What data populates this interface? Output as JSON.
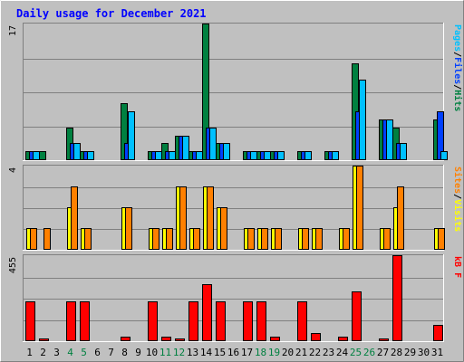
{
  "title": "Daily usage for December 2021",
  "colors": {
    "background": "#C0C0C0",
    "title": "#0000FF",
    "hits": "#008040",
    "files": "#0040FF",
    "pages": "#00C0FF",
    "visits": "#FFFF00",
    "sites": "#FF8000",
    "kbytes": "#FF0000",
    "weekend_label": "#008040"
  },
  "chart_data": [
    {
      "type": "bar",
      "name": "hits-files-pages",
      "ymax_label": "17",
      "ymax": 17,
      "legend": [
        "Pages",
        "/",
        "Files",
        "/",
        "Hits"
      ],
      "series": [
        {
          "name": "Hits",
          "values": [
            1,
            1,
            0,
            4,
            1,
            0,
            0,
            7,
            0,
            1,
            2,
            3,
            1,
            17,
            2,
            0,
            1,
            1,
            1,
            0,
            1,
            0,
            1,
            0,
            12,
            0,
            5,
            4,
            0,
            0,
            5
          ]
        },
        {
          "name": "Files",
          "values": [
            1,
            0,
            0,
            2,
            1,
            0,
            0,
            2,
            0,
            1,
            1,
            3,
            1,
            4,
            2,
            0,
            1,
            1,
            1,
            0,
            1,
            0,
            1,
            0,
            6,
            0,
            5,
            2,
            0,
            0,
            6
          ]
        },
        {
          "name": "Pages",
          "values": [
            1,
            0,
            0,
            2,
            1,
            0,
            0,
            6,
            0,
            1,
            1,
            3,
            1,
            4,
            2,
            0,
            1,
            1,
            1,
            0,
            1,
            0,
            1,
            0,
            10,
            0,
            5,
            2,
            0,
            0,
            1
          ]
        }
      ]
    },
    {
      "type": "bar",
      "name": "visits-sites",
      "ymax_label": "4",
      "ymax": 4,
      "legend": [
        "Sites",
        "/",
        "Visits"
      ],
      "series": [
        {
          "name": "Visits",
          "values": [
            1,
            0,
            0,
            2,
            1,
            0,
            0,
            2,
            0,
            1,
            1,
            3,
            1,
            3,
            2,
            0,
            1,
            1,
            1,
            0,
            1,
            1,
            0,
            1,
            4,
            0,
            1,
            2,
            0,
            0,
            1
          ]
        },
        {
          "name": "Sites",
          "values": [
            1,
            1,
            0,
            3,
            1,
            0,
            0,
            2,
            0,
            1,
            1,
            3,
            1,
            3,
            2,
            0,
            1,
            1,
            1,
            0,
            1,
            1,
            0,
            1,
            4,
            0,
            1,
            3,
            0,
            0,
            1
          ]
        }
      ]
    },
    {
      "type": "bar",
      "name": "kbytes",
      "ymax_label": "455",
      "ymax": 455,
      "legend": [
        "kB",
        "F"
      ],
      "series": [
        {
          "name": "kB F",
          "values": [
            210,
            12,
            0,
            210,
            210,
            0,
            0,
            20,
            0,
            210,
            20,
            12,
            210,
            300,
            210,
            0,
            210,
            210,
            20,
            0,
            210,
            40,
            0,
            20,
            260,
            0,
            12,
            455,
            0,
            0,
            80
          ]
        }
      ]
    }
  ],
  "days": [
    "1",
    "2",
    "3",
    "4",
    "5",
    "6",
    "7",
    "8",
    "9",
    "10",
    "11",
    "12",
    "13",
    "14",
    "15",
    "16",
    "17",
    "18",
    "19",
    "20",
    "21",
    "22",
    "23",
    "24",
    "25",
    "26",
    "27",
    "28",
    "29",
    "30",
    "31"
  ],
  "weekend_days": [
    "4",
    "5",
    "11",
    "12",
    "18",
    "19",
    "25",
    "26"
  ]
}
